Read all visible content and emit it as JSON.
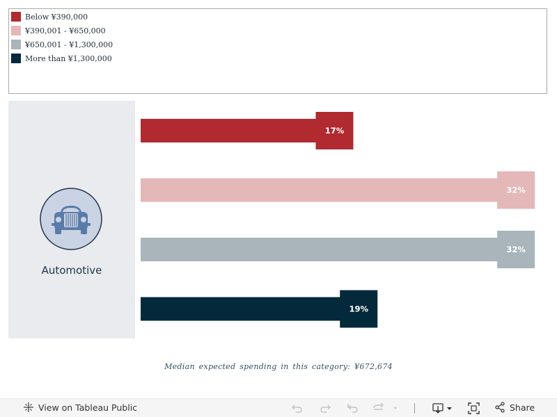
{
  "legend": {
    "items": [
      {
        "label": "Below ¥390,000",
        "color": "#b02a30"
      },
      {
        "label": "¥390,001 - ¥650,000",
        "color": "#e4b7b8"
      },
      {
        "label": "¥650,001 - ¥1,300,000",
        "color": "#a9b5bb"
      },
      {
        "label": "More than ¥1,300,000",
        "color": "#04293a"
      }
    ]
  },
  "category": {
    "label": "Automotive",
    "icon": "car-icon"
  },
  "chart_data": {
    "type": "bar",
    "orientation": "horizontal",
    "category": "Automotive",
    "categories": [
      "Below ¥390,000",
      "¥390,001 - ¥650,000",
      "¥650,001 - ¥1,300,000",
      "More than ¥1,300,000"
    ],
    "values": [
      17,
      32,
      32,
      19
    ],
    "value_labels": [
      "17%",
      "32%",
      "32%",
      "19%"
    ],
    "colors": [
      "#b02a30",
      "#e4b7b8",
      "#a9b5bb",
      "#04293a"
    ],
    "unit": "%",
    "xlim": [
      0,
      35
    ]
  },
  "median_note": "Median expected spending in this category: ¥672,674",
  "footer": {
    "view_label": "View on Tableau Public",
    "share_label": "Share"
  }
}
